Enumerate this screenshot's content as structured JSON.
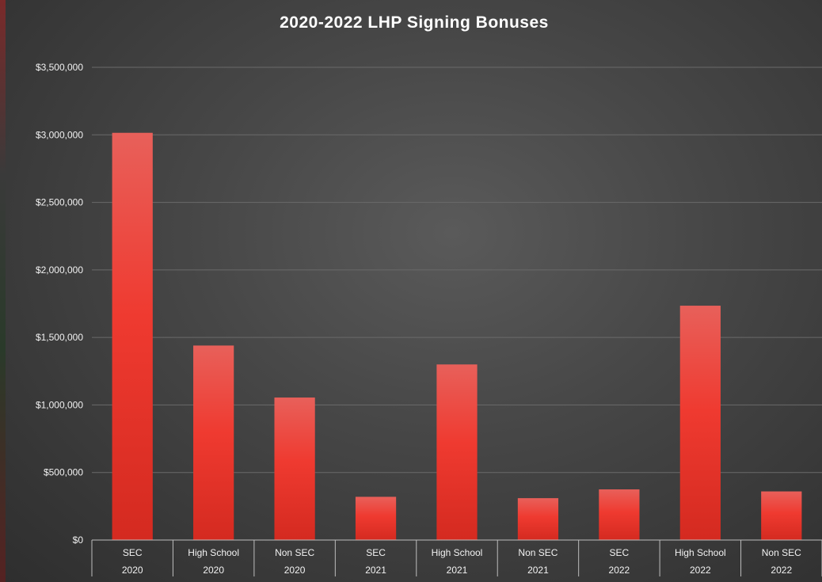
{
  "chart_data": {
    "type": "bar",
    "title": "2020-2022 LHP Signing Bonuses",
    "xlabel": "",
    "ylabel": "",
    "ylim": [
      0,
      3500000
    ],
    "yticks": [
      0,
      500000,
      1000000,
      1500000,
      2000000,
      2500000,
      3000000,
      3500000
    ],
    "ytick_labels": [
      "$0",
      "$500,000",
      "$1,000,000",
      "$1,500,000",
      "$2,000,000",
      "$2,500,000",
      "$3,000,000",
      "$3,500,000"
    ],
    "grid": true,
    "categories": [
      {
        "group": "SEC",
        "year": "2020"
      },
      {
        "group": "High School",
        "year": "2020"
      },
      {
        "group": "Non SEC",
        "year": "2020"
      },
      {
        "group": "SEC",
        "year": "2021"
      },
      {
        "group": "High School",
        "year": "2021"
      },
      {
        "group": "Non SEC",
        "year": "2021"
      },
      {
        "group": "SEC",
        "year": "2022"
      },
      {
        "group": "High School",
        "year": "2022"
      },
      {
        "group": "Non SEC",
        "year": "2022"
      }
    ],
    "values": [
      3015000,
      1440000,
      1055000,
      320000,
      1300000,
      310000,
      375000,
      1735000,
      360000
    ],
    "bar_color": "#e83a2e"
  }
}
